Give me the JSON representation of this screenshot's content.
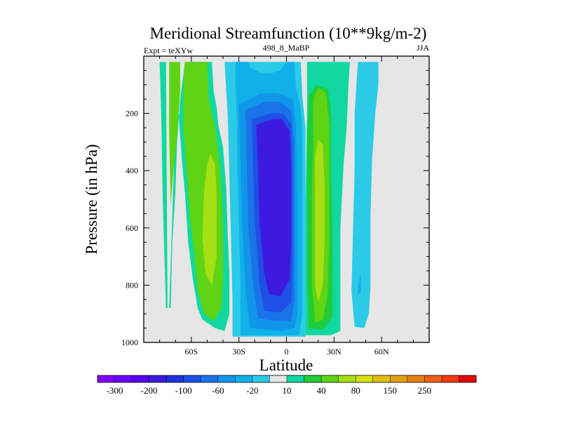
{
  "chart_data": {
    "type": "heatmap",
    "title": "Meridional Streamfunction (10**9kg/m-2)",
    "left_label": "Expt = teXYw",
    "center_label": "498_8_MaBP",
    "right_label": "JJA",
    "xlabel": "Latitude",
    "ylabel": "Pressure (in hPa)",
    "xlim": [
      -90,
      90
    ],
    "ylim": [
      1000,
      0
    ],
    "y_log": false,
    "x_ticks": [
      {
        "value": -60,
        "label": "60S"
      },
      {
        "value": -30,
        "label": "30S"
      },
      {
        "value": 0,
        "label": "0"
      },
      {
        "value": 30,
        "label": "30N"
      },
      {
        "value": 60,
        "label": "60N"
      }
    ],
    "y_ticks": [
      {
        "value": 200,
        "label": "200"
      },
      {
        "value": 400,
        "label": "400"
      },
      {
        "value": 600,
        "label": "600"
      },
      {
        "value": 800,
        "label": "800"
      },
      {
        "value": 1000,
        "label": "1000"
      }
    ],
    "missing_color": "#e6e6e6",
    "colorbar": {
      "placement": "bottom",
      "colors": [
        "#7f00ff",
        "#6a00ff",
        "#5500ee",
        "#3d1ae0",
        "#2030dd",
        "#1e50e6",
        "#1a73e8",
        "#1096e8",
        "#10b0e8",
        "#2bcbe8",
        "#e6e6e6",
        "#10d8a0",
        "#20cc3a",
        "#5ed414",
        "#a5e014",
        "#d9e012",
        "#e0c010",
        "#e0a010",
        "#e68010",
        "#ee6014",
        "#ee3a12",
        "#e00a0a"
      ],
      "labels": [
        "-300",
        "-200",
        "-100",
        "-60",
        "-20",
        "10",
        "40",
        "80",
        "150",
        "250"
      ]
    },
    "regions": [
      {
        "level": 10,
        "color": "#10d8a0",
        "points": [
          [
            -80,
            20
          ],
          [
            -76,
            20
          ],
          [
            -75,
            880
          ],
          [
            -73,
            880
          ],
          [
            -72,
            650
          ],
          [
            -70,
            470
          ],
          [
            -69,
            300
          ],
          [
            -67,
            150
          ],
          [
            -64,
            20
          ],
          [
            -47,
            20
          ],
          [
            -46,
            120
          ],
          [
            -44,
            180
          ],
          [
            -43,
            240
          ],
          [
            -40,
            320
          ],
          [
            -38,
            460
          ],
          [
            -37,
            620
          ],
          [
            -36,
            760
          ],
          [
            -36,
            900
          ],
          [
            -39,
            960
          ],
          [
            -45,
            950
          ],
          [
            -53,
            920
          ],
          [
            -56,
            880
          ],
          [
            -59,
            780
          ],
          [
            -62,
            650
          ],
          [
            -64,
            480
          ],
          [
            -66,
            360
          ],
          [
            -68,
            200
          ],
          [
            -71,
            380
          ],
          [
            -72,
            560
          ],
          [
            -74,
            880
          ],
          [
            -76,
            880
          ],
          [
            -78,
            500
          ],
          [
            -79,
            200
          ]
        ]
      },
      {
        "level": 40,
        "color": "#5ed414",
        "points": [
          [
            -74,
            20
          ],
          [
            -67,
            20
          ],
          [
            -67,
            120
          ],
          [
            -69,
            280
          ],
          [
            -71,
            380
          ],
          [
            -73,
            520
          ],
          [
            -74,
            260
          ]
        ]
      },
      {
        "level": 40,
        "color": "#5ed414",
        "points": [
          [
            -64,
            20
          ],
          [
            -50,
            20
          ],
          [
            -49,
            150
          ],
          [
            -47,
            200
          ],
          [
            -45,
            250
          ],
          [
            -43,
            330
          ],
          [
            -41,
            460
          ],
          [
            -40,
            620
          ],
          [
            -40,
            780
          ],
          [
            -41,
            880
          ],
          [
            -46,
            925
          ],
          [
            -52,
            900
          ],
          [
            -56,
            820
          ],
          [
            -58,
            700
          ],
          [
            -61,
            560
          ],
          [
            -63,
            400
          ],
          [
            -65,
            240
          ],
          [
            -65,
            100
          ]
        ]
      },
      {
        "level": 80,
        "color": "#a5e014",
        "points": [
          [
            -50,
            380
          ],
          [
            -48,
            340
          ],
          [
            -45,
            380
          ],
          [
            -44,
            500
          ],
          [
            -44,
            700
          ],
          [
            -47,
            800
          ],
          [
            -51,
            760
          ],
          [
            -53,
            640
          ],
          [
            -52,
            470
          ]
        ]
      },
      {
        "level": -20,
        "color": "#2bcbe8",
        "points": [
          [
            -39,
            20
          ],
          [
            9,
            20
          ],
          [
            10,
            140
          ],
          [
            12,
            250
          ],
          [
            12,
            540
          ],
          [
            12,
            980
          ],
          [
            -34,
            980
          ],
          [
            -34,
            860
          ],
          [
            -35,
            640
          ],
          [
            -36,
            420
          ],
          [
            -37,
            210
          ],
          [
            -38,
            120
          ]
        ]
      },
      {
        "level": -60,
        "color": "#10b0e8",
        "points": [
          [
            -32,
            20
          ],
          [
            -24,
            20
          ],
          [
            -23,
            40
          ],
          [
            -16,
            60
          ],
          [
            -10,
            60
          ],
          [
            -4,
            50
          ],
          [
            0,
            20
          ],
          [
            5,
            20
          ],
          [
            6,
            110
          ],
          [
            9,
            180
          ],
          [
            10,
            270
          ],
          [
            10,
            560
          ],
          [
            10,
            900
          ],
          [
            8,
            975
          ],
          [
            -29,
            975
          ],
          [
            -29,
            800
          ],
          [
            -30,
            580
          ],
          [
            -31,
            380
          ],
          [
            -31,
            240
          ],
          [
            -32,
            110
          ]
        ]
      },
      {
        "level": -100,
        "color": "#1096e8",
        "points": [
          [
            -30,
            170
          ],
          [
            -16,
            130
          ],
          [
            -6,
            130
          ],
          [
            4,
            150
          ],
          [
            6,
            250
          ],
          [
            7,
            540
          ],
          [
            7,
            900
          ],
          [
            5,
            950
          ],
          [
            -3,
            960
          ],
          [
            -23,
            950
          ],
          [
            -26,
            800
          ],
          [
            -28,
            580
          ],
          [
            -29,
            380
          ]
        ]
      },
      {
        "level": -200,
        "color": "#1a73e8",
        "points": [
          [
            -26,
            190
          ],
          [
            -14,
            160
          ],
          [
            -4,
            160
          ],
          [
            3,
            190
          ],
          [
            5,
            300
          ],
          [
            5,
            700
          ],
          [
            5,
            850
          ],
          [
            3,
            925
          ],
          [
            -8,
            925
          ],
          [
            -18,
            915
          ],
          [
            -21,
            800
          ],
          [
            -24,
            600
          ],
          [
            -25,
            380
          ]
        ]
      },
      {
        "level": -300,
        "color": "#1e50e6",
        "points": [
          [
            -22,
            220
          ],
          [
            -10,
            200
          ],
          [
            -2,
            200
          ],
          [
            3,
            240
          ],
          [
            4,
            400
          ],
          [
            4,
            700
          ],
          [
            3,
            860
          ],
          [
            -4,
            895
          ],
          [
            -14,
            890
          ],
          [
            -17,
            800
          ],
          [
            -20,
            580
          ],
          [
            -21,
            380
          ]
        ]
      },
      {
        "level": -400,
        "color": "#3d1ae0",
        "points": [
          [
            -19,
            240
          ],
          [
            -9,
            220
          ],
          [
            -3,
            220
          ],
          [
            2,
            260
          ],
          [
            3,
            400
          ],
          [
            3,
            650
          ],
          [
            2,
            780
          ],
          [
            -4,
            840
          ],
          [
            -11,
            830
          ],
          [
            -14,
            760
          ],
          [
            -17,
            580
          ],
          [
            -18,
            380
          ]
        ]
      },
      {
        "level": 10,
        "color": "#10d8a0",
        "points": [
          [
            13,
            20
          ],
          [
            40,
            20
          ],
          [
            39,
            110
          ],
          [
            38,
            250
          ],
          [
            36,
            380
          ],
          [
            34,
            600
          ],
          [
            34,
            800
          ],
          [
            34,
            960
          ],
          [
            28,
            975
          ],
          [
            12,
            975
          ],
          [
            12,
            900
          ],
          [
            12,
            500
          ],
          [
            13,
            200
          ]
        ]
      },
      {
        "level": 40,
        "color": "#20cc3a",
        "points": [
          [
            13,
            280
          ],
          [
            14,
            140
          ],
          [
            19,
            100
          ],
          [
            26,
            115
          ],
          [
            28,
            180
          ],
          [
            28,
            400
          ],
          [
            29,
            600
          ],
          [
            29,
            800
          ],
          [
            29,
            910
          ],
          [
            23,
            955
          ],
          [
            14,
            950
          ],
          [
            13,
            800
          ],
          [
            13,
            500
          ]
        ]
      },
      {
        "level": 80,
        "color": "#5ed414",
        "points": [
          [
            17,
            280
          ],
          [
            17,
            150
          ],
          [
            20,
            110
          ],
          [
            25,
            130
          ],
          [
            27,
            240
          ],
          [
            27,
            450
          ],
          [
            27,
            650
          ],
          [
            26,
            830
          ],
          [
            23,
            920
          ],
          [
            18,
            930
          ],
          [
            16,
            800
          ],
          [
            16,
            500
          ]
        ]
      },
      {
        "level": 150,
        "color": "#a5e014",
        "points": [
          [
            18,
            350
          ],
          [
            20,
            290
          ],
          [
            23,
            310
          ],
          [
            24,
            450
          ],
          [
            24,
            650
          ],
          [
            23,
            800
          ],
          [
            20,
            860
          ],
          [
            18,
            800
          ],
          [
            18,
            600
          ]
        ]
      },
      {
        "level": -20,
        "color": "#2bcbe8",
        "points": [
          [
            45,
            20
          ],
          [
            58,
            20
          ],
          [
            58,
            100
          ],
          [
            56,
            200
          ],
          [
            54,
            360
          ],
          [
            53,
            560
          ],
          [
            53,
            800
          ],
          [
            52,
            900
          ],
          [
            49,
            950
          ],
          [
            43,
            945
          ],
          [
            41,
            820
          ],
          [
            42,
            600
          ],
          [
            43,
            400
          ],
          [
            43,
            200
          ]
        ]
      },
      {
        "level": -60,
        "color": "#10b0e8",
        "points": [
          [
            45,
            800
          ],
          [
            47,
            760
          ],
          [
            47,
            820
          ],
          [
            45,
            840
          ]
        ]
      }
    ]
  }
}
